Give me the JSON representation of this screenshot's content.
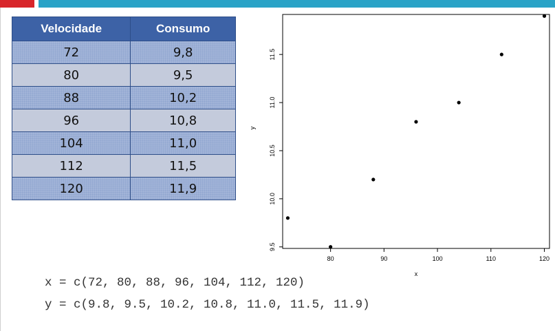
{
  "table": {
    "headers": [
      "Velocidade",
      "Consumo"
    ],
    "rows": [
      [
        "72",
        "9,8"
      ],
      [
        "80",
        "9,5"
      ],
      [
        "88",
        "10,2"
      ],
      [
        "96",
        "10,8"
      ],
      [
        "104",
        "11,0"
      ],
      [
        "112",
        "11,5"
      ],
      [
        "120",
        "11,9"
      ]
    ]
  },
  "code": {
    "line_x": "x = c(72, 80, 88, 96, 104, 112, 120)",
    "line_y": "y = c(9.8, 9.5, 10.2, 10.8, 11.0, 11.5, 11.9)"
  },
  "colors": {
    "header_bg": "#3d62a6",
    "row_odd": "#8fa5cf",
    "row_even": "#c4cbdc",
    "bar_red": "#d8262b",
    "bar_blue": "#2aa3c7"
  },
  "chart_data": {
    "type": "scatter",
    "xlabel": "x",
    "ylabel": "y",
    "x": [
      72,
      80,
      88,
      96,
      104,
      112,
      120
    ],
    "y": [
      9.8,
      9.5,
      10.2,
      10.8,
      11.0,
      11.5,
      11.9
    ],
    "xlim": [
      71.04,
      120.96
    ],
    "ylim": [
      9.484,
      11.916
    ],
    "xticks": [
      80,
      90,
      100,
      110,
      120
    ],
    "yticks": [
      9.5,
      10.0,
      10.5,
      11.0,
      11.5
    ],
    "xtick_labels": [
      "80",
      "90",
      "100",
      "110",
      "120"
    ],
    "ytick_labels": [
      "9.5",
      "10.0",
      "10.5",
      "11.0",
      "11.5"
    ],
    "grid": false,
    "legend": "none"
  }
}
